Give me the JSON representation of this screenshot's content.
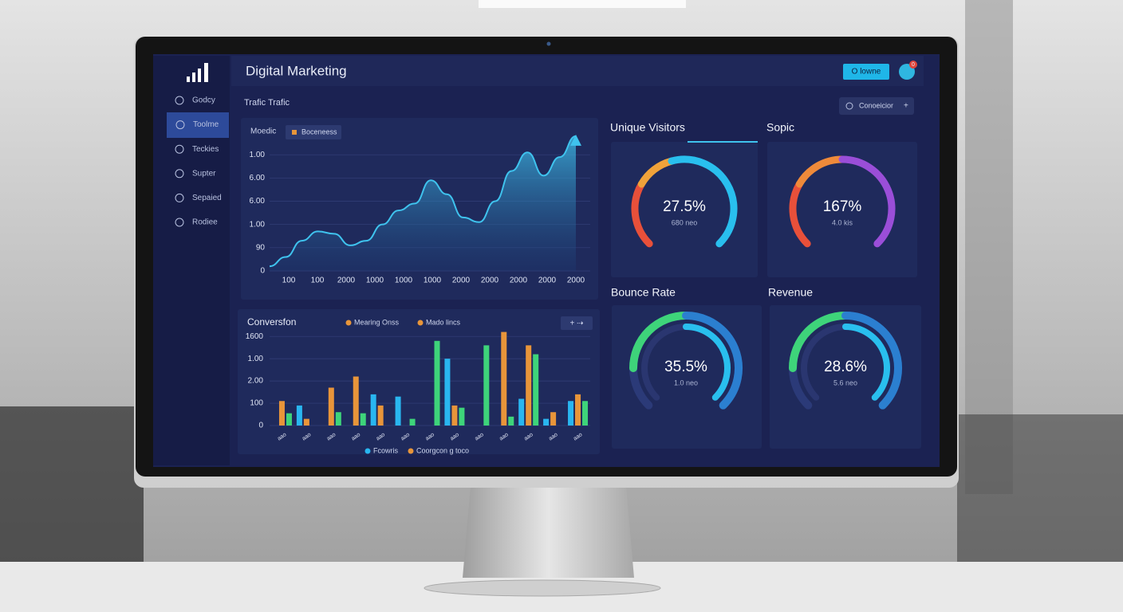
{
  "sidebar": {
    "items": [
      "Godcy",
      "Toolme",
      "Teckies",
      "Supter",
      "Sepaied",
      "Rodiee"
    ]
  },
  "header": {
    "title": "Digital Marketing",
    "button": "O lowne",
    "badge": "0"
  },
  "toolbar": {
    "section_title": "Trafic Trafic",
    "filter": "Conoeicior"
  },
  "traffic_chart": {
    "type": "area",
    "legend": {
      "title": "Moedic",
      "label": "Boceneess",
      "color": "#e8953a"
    },
    "xtick_labels": [
      "100",
      "100",
      "2000",
      "1000",
      "1000",
      "1000",
      "2000",
      "2000",
      "2000",
      "2000",
      "2000"
    ],
    "values": [
      0.2,
      0.6,
      1.3,
      1.7,
      1.6,
      1.1,
      1.3,
      2.0,
      2.6,
      2.9,
      3.9,
      3.3,
      2.3,
      2.1,
      3.0,
      4.3,
      5.1,
      4.1,
      4.9,
      5.8
    ],
    "color": "#3fc3ee",
    "ylim": [
      0,
      6
    ],
    "yticks": [
      0,
      {
        "value": 1,
        "label": "90"
      },
      {
        "value": 2,
        "label": "1.00"
      },
      {
        "value": 3,
        "label": "6.00"
      },
      {
        "value": 4,
        "label": "6.00"
      },
      {
        "value": 5,
        "label": "1.00"
      }
    ]
  },
  "conversion_chart": {
    "type": "bar",
    "title": "Conversfon",
    "legend_top": [
      {
        "label": "Mearing Onss",
        "color": "#e8953a"
      },
      {
        "label": "Mado lincs",
        "color": "#e8953a"
      }
    ],
    "legend_bottom": [
      {
        "label": "Fcowris",
        "color": "#29b6f0"
      },
      {
        "label": "Coorgcon g toco",
        "color": "#e8953a"
      }
    ],
    "categories": [
      "aao",
      "aao",
      "aao",
      "aao",
      "aao",
      "aao",
      "aao",
      "aao",
      "aao",
      "aao",
      "aao",
      "aao",
      "aao"
    ],
    "series": [
      {
        "color": "#29b6f0",
        "values": [
          null,
          0.9,
          null,
          null,
          1.4,
          1.3,
          null,
          3.0,
          null,
          null,
          1.2,
          0.3,
          1.1
        ]
      },
      {
        "color": "#e8953a",
        "values": [
          1.1,
          0.3,
          1.7,
          2.2,
          0.9,
          null,
          null,
          0.9,
          null,
          4.2,
          3.6,
          0.6,
          1.4
        ]
      },
      {
        "color": "#3ed47a",
        "values": [
          0.55,
          null,
          0.6,
          0.55,
          null,
          0.3,
          3.8,
          0.8,
          3.6,
          0.4,
          3.2,
          null,
          1.1
        ]
      }
    ],
    "ylim": [
      0,
      4.4
    ],
    "yticks": [
      0,
      {
        "value": 1,
        "label": "100"
      },
      {
        "value": 2,
        "label": "2.00"
      },
      {
        "value": 3,
        "label": "1.00"
      },
      {
        "value": 4,
        "label": "1600"
      }
    ]
  },
  "kpis": [
    {
      "title": "Unique Visitors",
      "value": "27.5%",
      "subtitle": "680 neo"
    },
    {
      "title": "Sopic",
      "value": "167%",
      "subtitle": "4.0 kis"
    },
    {
      "title": "Bounce Rate",
      "value": "35.5%",
      "subtitle": "1.0 neo"
    },
    {
      "title": "Revenue",
      "value": "28.6%",
      "subtitle": "5.6 neo"
    }
  ]
}
